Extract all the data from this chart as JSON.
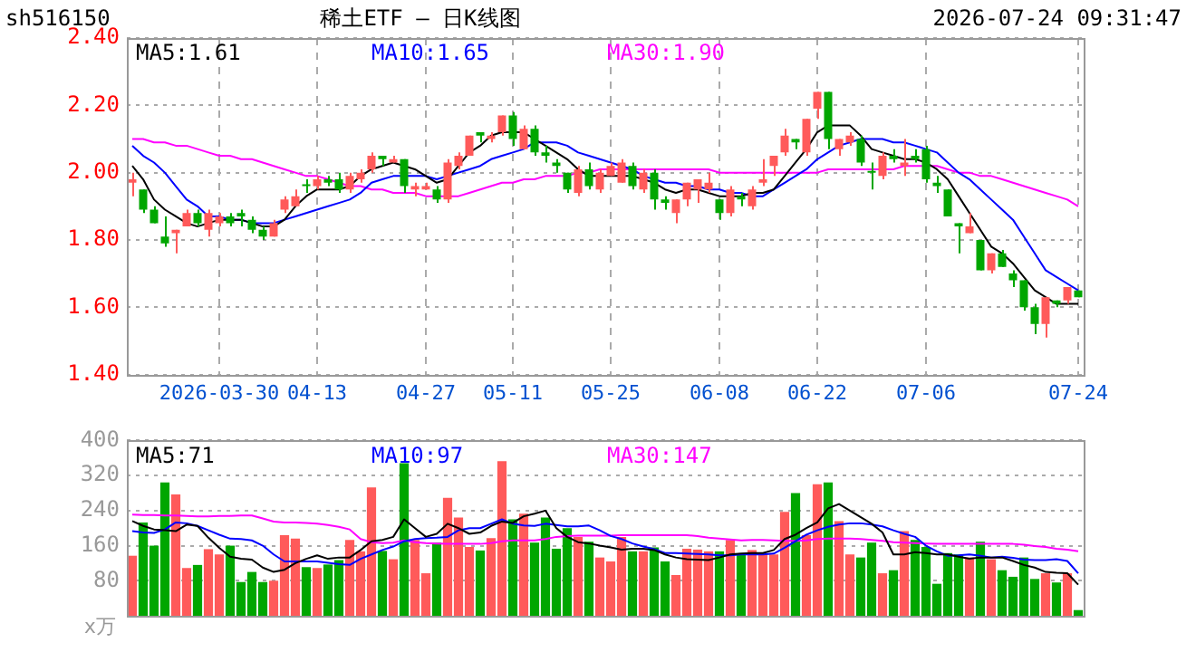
{
  "chart_data": [
    {
      "type": "candlestick",
      "title": "稀土ETF — 日K线图",
      "annotations": [
        "sh516150",
        "2026-07-24 09:31:47"
      ],
      "categories": [
        null,
        null,
        null,
        null,
        null,
        null,
        null,
        null,
        "2026-03-30",
        null,
        null,
        null,
        null,
        null,
        null,
        null,
        null,
        "04-13",
        null,
        null,
        null,
        null,
        null,
        null,
        null,
        null,
        null,
        "04-27",
        null,
        null,
        null,
        null,
        null,
        null,
        null,
        "05-11",
        null,
        null,
        null,
        null,
        null,
        null,
        null,
        null,
        "05-25",
        null,
        null,
        null,
        null,
        null,
        null,
        null,
        null,
        null,
        "06-08",
        null,
        null,
        null,
        null,
        null,
        null,
        null,
        null,
        "06-22",
        null,
        null,
        null,
        null,
        null,
        null,
        null,
        null,
        null,
        "07-06",
        null,
        null,
        null,
        null,
        null,
        null,
        null,
        null,
        null,
        null,
        null,
        null,
        null,
        "07-24"
      ],
      "ohlc": [
        [
          1.97,
          2.0,
          1.93,
          1.98
        ],
        [
          1.95,
          1.95,
          1.88,
          1.89
        ],
        [
          1.89,
          1.9,
          1.85,
          1.85
        ],
        [
          1.81,
          1.87,
          1.78,
          1.79
        ],
        [
          1.82,
          1.83,
          1.76,
          1.83
        ],
        [
          1.84,
          1.89,
          1.84,
          1.88
        ],
        [
          1.88,
          1.89,
          1.84,
          1.85
        ],
        [
          1.83,
          1.89,
          1.81,
          1.88
        ],
        [
          1.85,
          1.88,
          1.84,
          1.87
        ],
        [
          1.87,
          1.88,
          1.84,
          1.85
        ],
        [
          1.88,
          1.89,
          1.84,
          1.87
        ],
        [
          1.86,
          1.87,
          1.82,
          1.83
        ],
        [
          1.83,
          1.84,
          1.8,
          1.81
        ],
        [
          1.81,
          1.86,
          1.81,
          1.85
        ],
        [
          1.89,
          1.93,
          1.88,
          1.92
        ],
        [
          1.9,
          1.95,
          1.9,
          1.93
        ],
        [
          1.96,
          1.98,
          1.94,
          1.96
        ],
        [
          1.96,
          1.99,
          1.95,
          1.98
        ],
        [
          1.98,
          1.99,
          1.96,
          1.97
        ],
        [
          1.98,
          2.0,
          1.94,
          1.95
        ],
        [
          1.95,
          2.0,
          1.94,
          1.99
        ],
        [
          1.98,
          2.01,
          1.97,
          2.0
        ],
        [
          2.01,
          2.06,
          2.0,
          2.05
        ],
        [
          2.05,
          2.05,
          2.02,
          2.04
        ],
        [
          2.03,
          2.05,
          2.03,
          2.04
        ],
        [
          2.04,
          2.04,
          1.94,
          1.96
        ],
        [
          1.95,
          1.97,
          1.93,
          1.96
        ],
        [
          1.95,
          1.97,
          1.95,
          1.96
        ],
        [
          1.95,
          1.96,
          1.91,
          1.92
        ],
        [
          1.92,
          2.04,
          1.91,
          2.03
        ],
        [
          2.02,
          2.06,
          2.01,
          2.05
        ],
        [
          2.05,
          2.11,
          2.05,
          2.11
        ],
        [
          2.12,
          2.12,
          2.09,
          2.11
        ],
        [
          2.1,
          2.12,
          2.09,
          2.11
        ],
        [
          2.12,
          2.17,
          2.11,
          2.17
        ],
        [
          2.17,
          2.18,
          2.08,
          2.1
        ],
        [
          2.07,
          2.14,
          2.07,
          2.13
        ],
        [
          2.13,
          2.14,
          2.05,
          2.06
        ],
        [
          2.06,
          2.08,
          2.03,
          2.05
        ],
        [
          2.03,
          2.04,
          2.0,
          2.02
        ],
        [
          2.0,
          2.0,
          1.94,
          1.95
        ],
        [
          1.94,
          2.02,
          1.93,
          2.01
        ],
        [
          2.01,
          2.03,
          1.95,
          1.96
        ],
        [
          1.95,
          2.01,
          1.94,
          2.0
        ],
        [
          1.99,
          2.03,
          1.99,
          2.02
        ],
        [
          1.97,
          2.04,
          1.97,
          2.03
        ],
        [
          2.02,
          2.03,
          1.95,
          1.96
        ],
        [
          1.95,
          2.01,
          1.94,
          2.0
        ],
        [
          2.0,
          2.01,
          1.89,
          1.92
        ],
        [
          1.92,
          1.93,
          1.89,
          1.91
        ],
        [
          1.88,
          1.92,
          1.85,
          1.92
        ],
        [
          1.92,
          1.97,
          1.9,
          1.97
        ],
        [
          1.95,
          1.98,
          1.91,
          1.98
        ],
        [
          1.95,
          2.0,
          1.94,
          1.97
        ],
        [
          1.92,
          1.92,
          1.86,
          1.88
        ],
        [
          1.88,
          1.96,
          1.87,
          1.95
        ],
        [
          1.93,
          1.94,
          1.9,
          1.92
        ],
        [
          1.9,
          1.96,
          1.89,
          1.95
        ],
        [
          1.97,
          2.04,
          1.96,
          1.98
        ],
        [
          2.02,
          2.05,
          1.99,
          2.05
        ],
        [
          2.06,
          2.13,
          2.05,
          2.11
        ],
        [
          2.1,
          2.1,
          2.07,
          2.09
        ],
        [
          2.06,
          2.16,
          2.05,
          2.16
        ],
        [
          2.19,
          2.24,
          2.16,
          2.24
        ],
        [
          2.24,
          2.24,
          2.07,
          2.1
        ],
        [
          2.07,
          2.1,
          2.05,
          2.1
        ],
        [
          2.09,
          2.12,
          2.08,
          2.11
        ],
        [
          2.1,
          2.11,
          2.02,
          2.03
        ],
        [
          2.0,
          2.03,
          1.95,
          2.0
        ],
        [
          1.99,
          2.06,
          1.98,
          2.05
        ],
        [
          2.05,
          2.07,
          2.03,
          2.04
        ],
        [
          2.02,
          2.1,
          1.99,
          2.03
        ],
        [
          2.05,
          2.07,
          2.03,
          2.04
        ],
        [
          2.07,
          2.08,
          1.97,
          1.98
        ],
        [
          1.97,
          1.99,
          1.94,
          1.96
        ],
        [
          1.95,
          1.95,
          1.87,
          1.87
        ],
        [
          1.85,
          1.85,
          1.76,
          1.84
        ],
        [
          1.82,
          1.88,
          1.82,
          1.84
        ],
        [
          1.8,
          1.8,
          1.71,
          1.71
        ],
        [
          1.71,
          1.76,
          1.7,
          1.76
        ],
        [
          1.76,
          1.77,
          1.72,
          1.72
        ],
        [
          1.7,
          1.71,
          1.66,
          1.68
        ],
        [
          1.68,
          1.68,
          1.59,
          1.6
        ],
        [
          1.6,
          1.61,
          1.52,
          1.55
        ],
        [
          1.55,
          1.63,
          1.51,
          1.63
        ],
        [
          1.62,
          1.62,
          1.6,
          1.61
        ],
        [
          1.62,
          1.66,
          1.61,
          1.66
        ],
        [
          1.65,
          1.65,
          1.63,
          1.63
        ]
      ],
      "colors": [
        "#ff5a5a",
        "#00a600",
        "#00a600",
        "#00a600",
        "#ff5a5a",
        "#ff5a5a",
        "#00a600",
        "#ff5a5a",
        "#ff5a5a",
        "#00a600",
        "#00a600",
        "#00a600",
        "#00a600",
        "#ff5a5a",
        "#ff5a5a",
        "#ff5a5a",
        "#00a600",
        "#ff5a5a",
        "#00a600",
        "#00a600",
        "#ff5a5a",
        "#ff5a5a",
        "#ff5a5a",
        "#00a600",
        "#ff5a5a",
        "#00a600",
        "#ff5a5a",
        "#ff5a5a",
        "#00a600",
        "#ff5a5a",
        "#ff5a5a",
        "#ff5a5a",
        "#00a600",
        "#ff5a5a",
        "#ff5a5a",
        "#00a600",
        "#ff5a5a",
        "#00a600",
        "#00a600",
        "#00a600",
        "#00a600",
        "#ff5a5a",
        "#00a600",
        "#ff5a5a",
        "#ff5a5a",
        "#ff5a5a",
        "#00a600",
        "#ff5a5a",
        "#00a600",
        "#00a600",
        "#ff5a5a",
        "#ff5a5a",
        "#ff5a5a",
        "#ff5a5a",
        "#00a600",
        "#ff5a5a",
        "#00a600",
        "#ff5a5a",
        "#ff5a5a",
        "#ff5a5a",
        "#ff5a5a",
        "#00a600",
        "#ff5a5a",
        "#ff5a5a",
        "#00a600",
        "#ff5a5a",
        "#ff5a5a",
        "#00a600",
        "#00a600",
        "#ff5a5a",
        "#00a600",
        "#ff5a5a",
        "#00a600",
        "#00a600",
        "#00a600",
        "#00a600",
        "#00a600",
        "#ff5a5a",
        "#00a600",
        "#ff5a5a",
        "#00a600",
        "#00a600",
        "#00a600",
        "#00a600",
        "#ff5a5a",
        "#00a600",
        "#ff5a5a",
        "#00a600"
      ],
      "series": [
        {
          "type": "line",
          "name": "MA5:1.61",
          "color": "#000000",
          "values": [
            2.02,
            1.98,
            1.92,
            1.89,
            1.87,
            1.85,
            1.84,
            1.85,
            1.86,
            1.86,
            1.86,
            1.85,
            1.84,
            1.84,
            1.86,
            1.9,
            1.93,
            1.95,
            1.95,
            1.95,
            1.96,
            1.99,
            2.01,
            2.02,
            2.03,
            2.02,
            2.01,
            1.99,
            1.97,
            1.98,
            2.02,
            2.06,
            2.08,
            2.11,
            2.12,
            2.12,
            2.12,
            2.1,
            2.08,
            2.06,
            2.04,
            2.01,
            1.99,
            1.99,
            1.99,
            1.99,
            1.99,
            1.98,
            1.97,
            1.95,
            1.94,
            1.95,
            1.95,
            1.94,
            1.93,
            1.93,
            1.93,
            1.94,
            1.94,
            1.95,
            1.99,
            2.03,
            2.07,
            2.12,
            2.14,
            2.14,
            2.14,
            2.11,
            2.07,
            2.06,
            2.05,
            2.04,
            2.04,
            2.03,
            2.01,
            1.98,
            1.93,
            1.88,
            1.83,
            1.78,
            1.76,
            1.73,
            1.69,
            1.65,
            1.63,
            1.61,
            1.61,
            1.61
          ]
        },
        {
          "type": "line",
          "name": "MA10:1.65",
          "color": "#0000ff",
          "values": [
            2.08,
            2.05,
            2.03,
            2.0,
            1.96,
            1.92,
            1.9,
            1.87,
            1.87,
            1.86,
            1.86,
            1.85,
            1.85,
            1.85,
            1.86,
            1.87,
            1.88,
            1.89,
            1.9,
            1.91,
            1.92,
            1.94,
            1.97,
            1.98,
            1.99,
            1.99,
            1.99,
            1.99,
            1.98,
            1.99,
            2.0,
            2.01,
            2.02,
            2.04,
            2.05,
            2.06,
            2.07,
            2.09,
            2.09,
            2.09,
            2.08,
            2.06,
            2.05,
            2.04,
            2.03,
            2.02,
            2.01,
            1.99,
            1.98,
            1.97,
            1.97,
            1.96,
            1.96,
            1.95,
            1.95,
            1.94,
            1.94,
            1.93,
            1.93,
            1.95,
            1.97,
            1.99,
            2.01,
            2.04,
            2.06,
            2.08,
            2.09,
            2.1,
            2.1,
            2.1,
            2.09,
            2.09,
            2.08,
            2.07,
            2.06,
            2.03,
            2.0,
            1.98,
            1.95,
            1.92,
            1.89,
            1.86,
            1.81,
            1.76,
            1.71,
            1.69,
            1.67,
            1.65
          ]
        },
        {
          "type": "line",
          "name": "MA30:1.90",
          "color": "#ff00ff",
          "values": [
            2.1,
            2.1,
            2.09,
            2.09,
            2.08,
            2.08,
            2.07,
            2.06,
            2.05,
            2.05,
            2.04,
            2.04,
            2.03,
            2.02,
            2.01,
            2.0,
            1.99,
            1.99,
            1.98,
            1.97,
            1.96,
            1.96,
            1.95,
            1.95,
            1.94,
            1.94,
            1.94,
            1.93,
            1.93,
            1.93,
            1.93,
            1.94,
            1.95,
            1.96,
            1.97,
            1.97,
            1.98,
            1.98,
            1.99,
            1.99,
            1.99,
            2.0,
            2.0,
            2.01,
            2.01,
            2.01,
            2.01,
            2.01,
            2.01,
            2.01,
            2.01,
            2.01,
            2.01,
            2.01,
            2.0,
            2.0,
            2.0,
            2.0,
            2.0,
            2.0,
            2.0,
            2.0,
            2.0,
            2.0,
            2.01,
            2.01,
            2.01,
            2.01,
            2.01,
            2.01,
            2.01,
            2.02,
            2.02,
            2.02,
            2.02,
            2.01,
            2.0,
            2.0,
            1.99,
            1.99,
            1.98,
            1.97,
            1.96,
            1.95,
            1.94,
            1.93,
            1.92,
            1.9
          ]
        }
      ],
      "ylim": [
        1.4,
        2.4
      ],
      "yticks": [
        {
          "value": 1.4,
          "label": "1.40"
        },
        {
          "value": 1.6,
          "label": "1.60"
        },
        {
          "value": 1.8,
          "label": "1.80"
        },
        {
          "value": 2.0,
          "label": "2.00"
        },
        {
          "value": 2.2,
          "label": "2.20"
        },
        {
          "value": 2.4,
          "label": "2.40"
        }
      ],
      "grid": true,
      "legend": "top left",
      "marker": "none",
      "line_style": "solid"
    },
    {
      "type": "bar",
      "ylabel": "x万",
      "categories": [
        null,
        null,
        null,
        null,
        null,
        null,
        null,
        null,
        null,
        null,
        null,
        null,
        null,
        null,
        null,
        null,
        null,
        null,
        null,
        null,
        null,
        null,
        null,
        null,
        null,
        null,
        null,
        null,
        null,
        null,
        null,
        null,
        null,
        null,
        null,
        null,
        null,
        null,
        null,
        null,
        null,
        null,
        null,
        null,
        null,
        null,
        null,
        null,
        null,
        null,
        null,
        null,
        null,
        null,
        null,
        null,
        null,
        null,
        null,
        null,
        null,
        null,
        null,
        null,
        null,
        null,
        null,
        null,
        null,
        null,
        null,
        null,
        null,
        null,
        null,
        null,
        null,
        null,
        null,
        null,
        null,
        null,
        null,
        null,
        null,
        null,
        null,
        null
      ],
      "values": [
        137,
        213,
        160,
        304,
        277,
        109,
        116,
        152,
        140,
        160,
        77,
        100,
        77,
        80,
        184,
        176,
        111,
        109,
        117,
        127,
        173,
        147,
        293,
        148,
        129,
        348,
        173,
        97,
        167,
        269,
        224,
        157,
        149,
        177,
        353,
        220,
        233,
        167,
        224,
        153,
        200,
        180,
        169,
        133,
        124,
        180,
        147,
        147,
        156,
        124,
        93,
        153,
        151,
        147,
        147,
        173,
        140,
        150,
        140,
        140,
        237,
        280,
        184,
        300,
        304,
        216,
        140,
        133,
        167,
        97,
        104,
        193,
        173,
        157,
        73,
        143,
        140,
        133,
        169,
        129,
        104,
        89,
        133,
        84,
        97,
        76,
        97,
        13
      ],
      "colors": [
        "#ff5a5a",
        "#00a600",
        "#00a600",
        "#00a600",
        "#ff5a5a",
        "#ff5a5a",
        "#00a600",
        "#ff5a5a",
        "#ff5a5a",
        "#00a600",
        "#00a600",
        "#00a600",
        "#00a600",
        "#ff5a5a",
        "#ff5a5a",
        "#ff5a5a",
        "#00a600",
        "#ff5a5a",
        "#00a600",
        "#00a600",
        "#ff5a5a",
        "#ff5a5a",
        "#ff5a5a",
        "#00a600",
        "#ff5a5a",
        "#00a600",
        "#ff5a5a",
        "#ff5a5a",
        "#00a600",
        "#ff5a5a",
        "#ff5a5a",
        "#ff5a5a",
        "#00a600",
        "#ff5a5a",
        "#ff5a5a",
        "#00a600",
        "#ff5a5a",
        "#00a600",
        "#00a600",
        "#00a600",
        "#00a600",
        "#ff5a5a",
        "#00a600",
        "#ff5a5a",
        "#ff5a5a",
        "#ff5a5a",
        "#00a600",
        "#ff5a5a",
        "#00a600",
        "#00a600",
        "#ff5a5a",
        "#ff5a5a",
        "#ff5a5a",
        "#ff5a5a",
        "#00a600",
        "#ff5a5a",
        "#00a600",
        "#ff5a5a",
        "#ff5a5a",
        "#ff5a5a",
        "#ff5a5a",
        "#00a600",
        "#ff5a5a",
        "#ff5a5a",
        "#00a600",
        "#ff5a5a",
        "#ff5a5a",
        "#00a600",
        "#00a600",
        "#ff5a5a",
        "#00a600",
        "#ff5a5a",
        "#00a600",
        "#00a600",
        "#00a600",
        "#00a600",
        "#00a600",
        "#ff5a5a",
        "#00a600",
        "#ff5a5a",
        "#00a600",
        "#00a600",
        "#00a600",
        "#00a600",
        "#ff5a5a",
        "#00a600",
        "#ff5a5a",
        "#00a600"
      ],
      "series": [
        {
          "type": "line",
          "name": "MA5:71",
          "color": "#000000",
          "values": [
            216,
            205,
            197,
            195,
            193,
            208,
            205,
            178,
            155,
            135,
            130,
            128,
            110,
            100,
            105,
            120,
            130,
            138,
            130,
            133,
            133,
            150,
            170,
            173,
            180,
            220,
            200,
            180,
            187,
            210,
            200,
            187,
            190,
            205,
            215,
            212,
            227,
            233,
            240,
            200,
            180,
            168,
            165,
            160,
            156,
            151,
            153,
            153,
            150,
            140,
            133,
            129,
            128,
            127,
            133,
            140,
            142,
            143,
            143,
            150,
            175,
            185,
            200,
            213,
            245,
            255,
            240,
            225,
            210,
            190,
            140,
            140,
            145,
            143,
            140,
            140,
            135,
            130,
            133,
            133,
            133,
            125,
            116,
            110,
            100,
            98,
            97,
            71
          ]
        },
        {
          "type": "line",
          "name": "MA10:97",
          "color": "#0000ff",
          "values": [
            193,
            190,
            189,
            197,
            213,
            211,
            205,
            195,
            185,
            176,
            175,
            172,
            160,
            140,
            124,
            124,
            124,
            124,
            121,
            118,
            116,
            130,
            140,
            150,
            158,
            170,
            175,
            177,
            178,
            180,
            195,
            200,
            200,
            210,
            220,
            210,
            206,
            205,
            210,
            207,
            204,
            204,
            206,
            195,
            182,
            175,
            165,
            158,
            152,
            143,
            143,
            142,
            141,
            140,
            138,
            138,
            140,
            140,
            140,
            142,
            155,
            170,
            185,
            195,
            203,
            208,
            211,
            211,
            208,
            204,
            195,
            187,
            180,
            160,
            147,
            137,
            138,
            140,
            137,
            133,
            135,
            132,
            128,
            127,
            127,
            129,
            125,
            97
          ]
        },
        {
          "type": "line",
          "name": "MA30:147",
          "color": "#ff00ff",
          "values": [
            231,
            230,
            230,
            229,
            229,
            228,
            227,
            227,
            228,
            228,
            229,
            229,
            222,
            215,
            213,
            213,
            212,
            210,
            207,
            203,
            197,
            175,
            168,
            166,
            167,
            172,
            168,
            166,
            165,
            164,
            164,
            164,
            164,
            166,
            170,
            172,
            172,
            172,
            175,
            180,
            182,
            183,
            183,
            183,
            183,
            184,
            184,
            184,
            184,
            184,
            184,
            184,
            182,
            178,
            176,
            174,
            172,
            173,
            173,
            172,
            171,
            171,
            172,
            175,
            176,
            176,
            176,
            175,
            173,
            171,
            168,
            167,
            166,
            165,
            164,
            164,
            164,
            164,
            164,
            164,
            164,
            164,
            162,
            159,
            157,
            153,
            151,
            147
          ]
        }
      ],
      "ylim": [
        0,
        400
      ],
      "yticks": [
        80,
        160,
        240,
        320,
        400
      ],
      "tick_labels": "y",
      "grid": true,
      "legend": "top left",
      "marker": "none",
      "line_style": "solid"
    }
  ]
}
